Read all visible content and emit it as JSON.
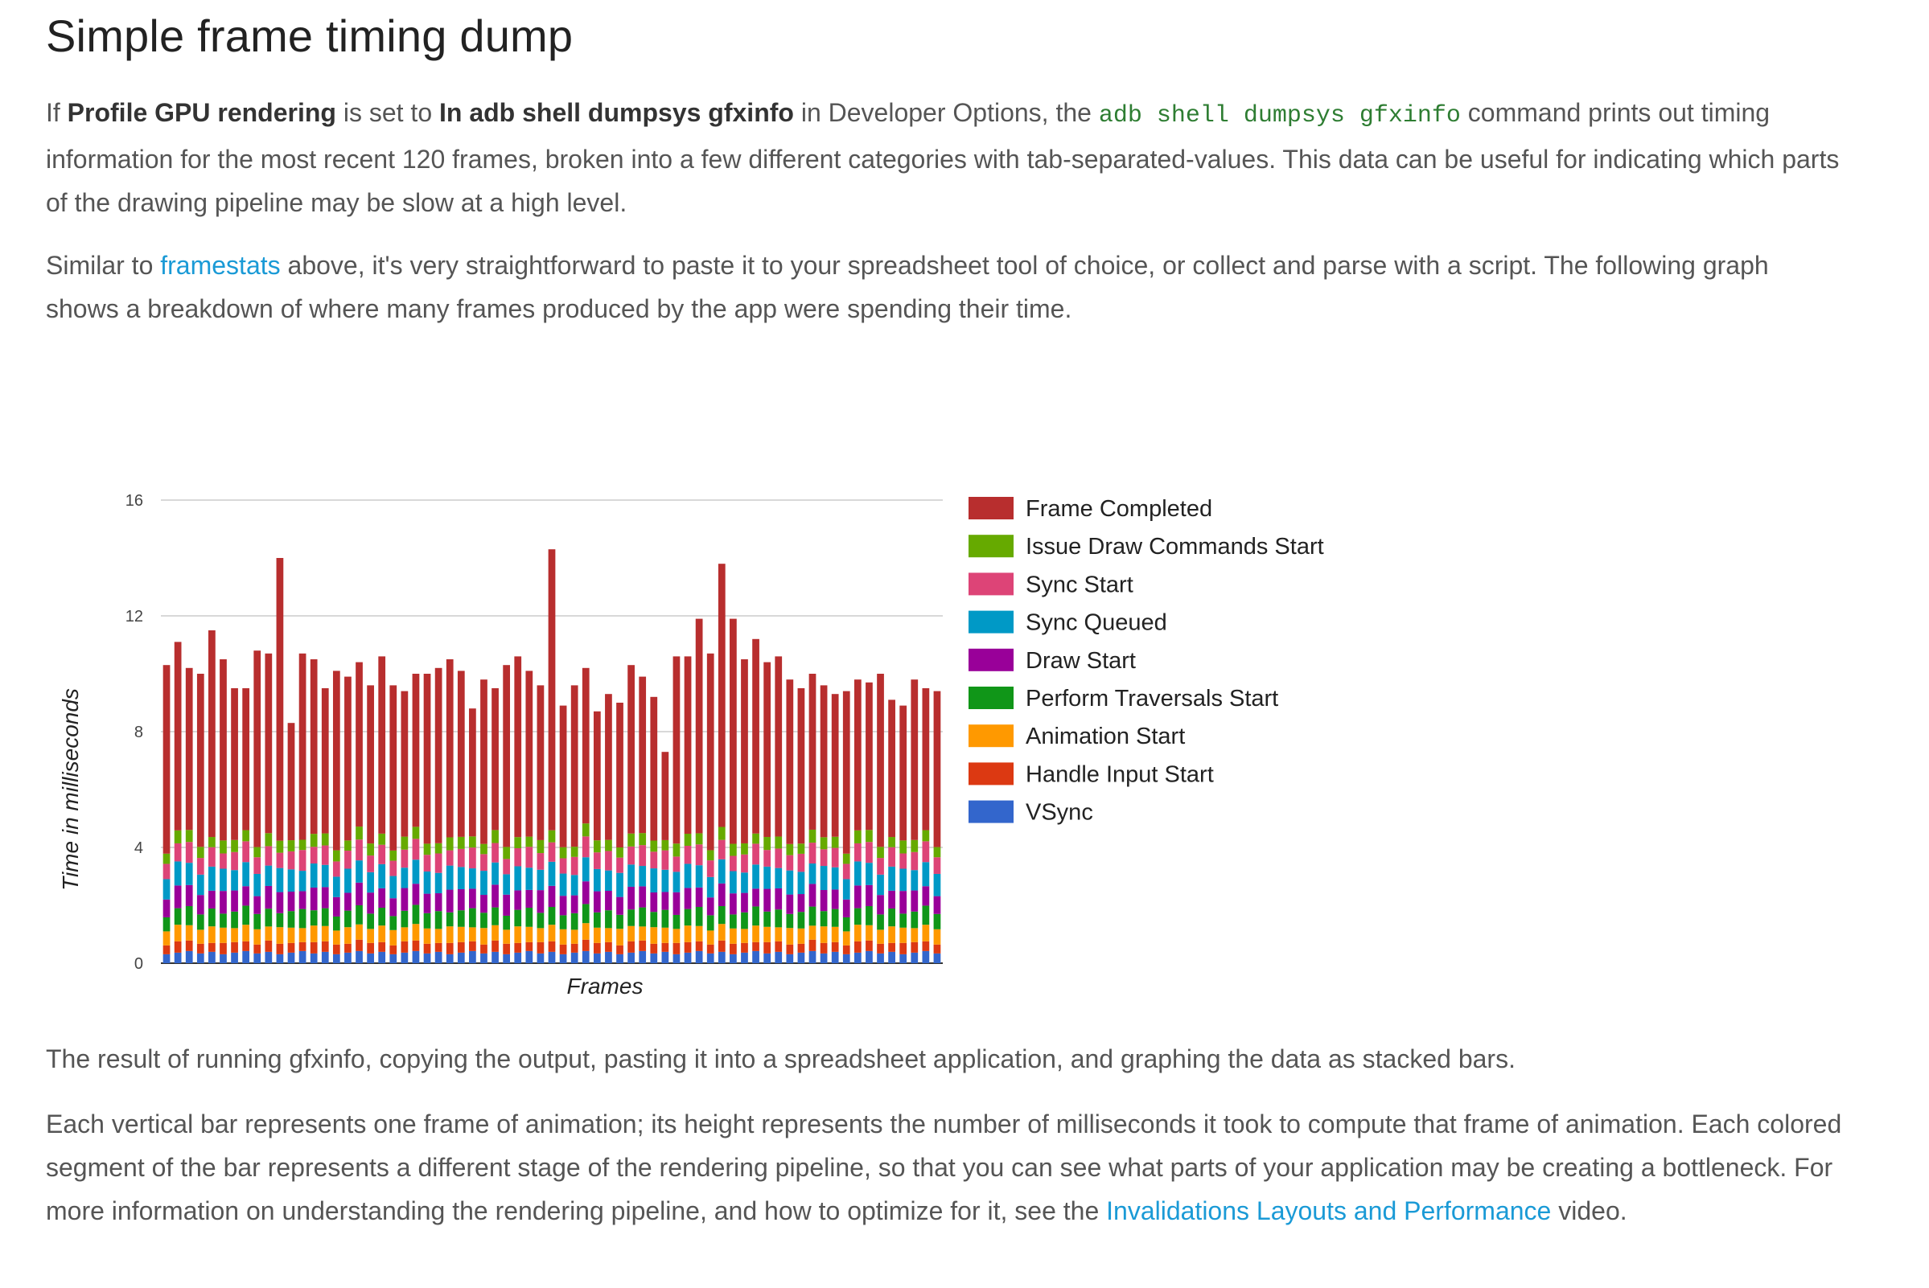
{
  "heading": "Simple frame timing dump",
  "para1": {
    "t1": "If ",
    "b1": "Profile GPU rendering",
    "t2": " is set to ",
    "b2": "In adb shell dumpsys gfxinfo",
    "t3": " in Developer Options, the ",
    "code": "adb shell dumpsys gfxinfo",
    "t4": " command prints out timing information for the most recent 120 frames, broken into a few different categories with tab-separated-values. This data can be useful for indicating which parts of the drawing pipeline may be slow at a high level."
  },
  "para2": {
    "t1": "Similar to ",
    "link": "framestats",
    "t2": " above, it's very straightforward to paste it to your spreadsheet tool of choice, or collect and parse with a script. The following graph shows a breakdown of where many frames produced by the app were spending their time."
  },
  "para3": "The result of running gfxinfo, copying the output, pasting it into a spreadsheet application, and graphing the data as stacked bars.",
  "para4": {
    "t1": "Each vertical bar represents one frame of animation; its height represents the number of milliseconds it took to compute that frame of animation. Each colored segment of the bar represents a different stage of the rendering pipeline, so that you can see what parts of your application may be creating a bottleneck. For more information on understanding the rendering pipeline, and how to optimize for it, see the ",
    "link": "Invalidations Layouts and Performance",
    "t2": " video."
  },
  "chart_data": {
    "type": "bar",
    "stacked": true,
    "xlabel": "Frames",
    "ylabel": "Time in milliseconds",
    "ylim": [
      0,
      16
    ],
    "yticks": [
      0,
      4,
      8,
      12,
      16
    ],
    "grid": true,
    "legend_position": "right",
    "stage_names": [
      "VSync",
      "Handle Input Start",
      "Animation Start",
      "Perform Traversals Start",
      "Draw Start",
      "Sync Queued",
      "Sync Start",
      "Issue Draw Commands Start",
      "Frame Completed"
    ],
    "stage_colors": [
      "#3366cc",
      "#dc3912",
      "#ff9900",
      "#109618",
      "#990099",
      "#0099c6",
      "#dd4477",
      "#66aa00",
      "#b82e2e"
    ],
    "legend_order": [
      "Frame Completed",
      "Issue Draw Commands Start",
      "Sync Start",
      "Sync Queued",
      "Draw Start",
      "Perform Traversals Start",
      "Animation Start",
      "Handle Input Start",
      "VSync"
    ],
    "frame_totals_ms": [
      10.3,
      11.1,
      10.2,
      10.0,
      11.5,
      10.5,
      9.5,
      9.5,
      10.8,
      10.7,
      14.0,
      8.3,
      10.7,
      10.5,
      9.5,
      10.1,
      9.9,
      10.4,
      9.6,
      10.6,
      9.6,
      9.4,
      10.0,
      10.0,
      10.2,
      10.5,
      10.1,
      8.8,
      9.8,
      9.5,
      10.3,
      10.6,
      10.1,
      9.6,
      14.3,
      8.9,
      9.6,
      10.2,
      8.7,
      9.3,
      9.0,
      10.3,
      9.9,
      9.2,
      7.3,
      10.6,
      10.6,
      11.9,
      10.7,
      13.8,
      11.9,
      10.5,
      11.2,
      10.4,
      10.6,
      9.8,
      9.5,
      10.0,
      9.6,
      9.3,
      9.4,
      9.8,
      9.7,
      10.0,
      9.1,
      8.9,
      9.8,
      9.5,
      9.4
    ],
    "base_stages_ms": [
      0.35,
      0.35,
      0.55,
      0.55,
      0.7,
      0.8,
      0.6,
      0.4
    ],
    "series_note": "Each frame is stacked bottom-up from VSync through Frame Completed; Frame Completed fills the remainder of each total."
  }
}
